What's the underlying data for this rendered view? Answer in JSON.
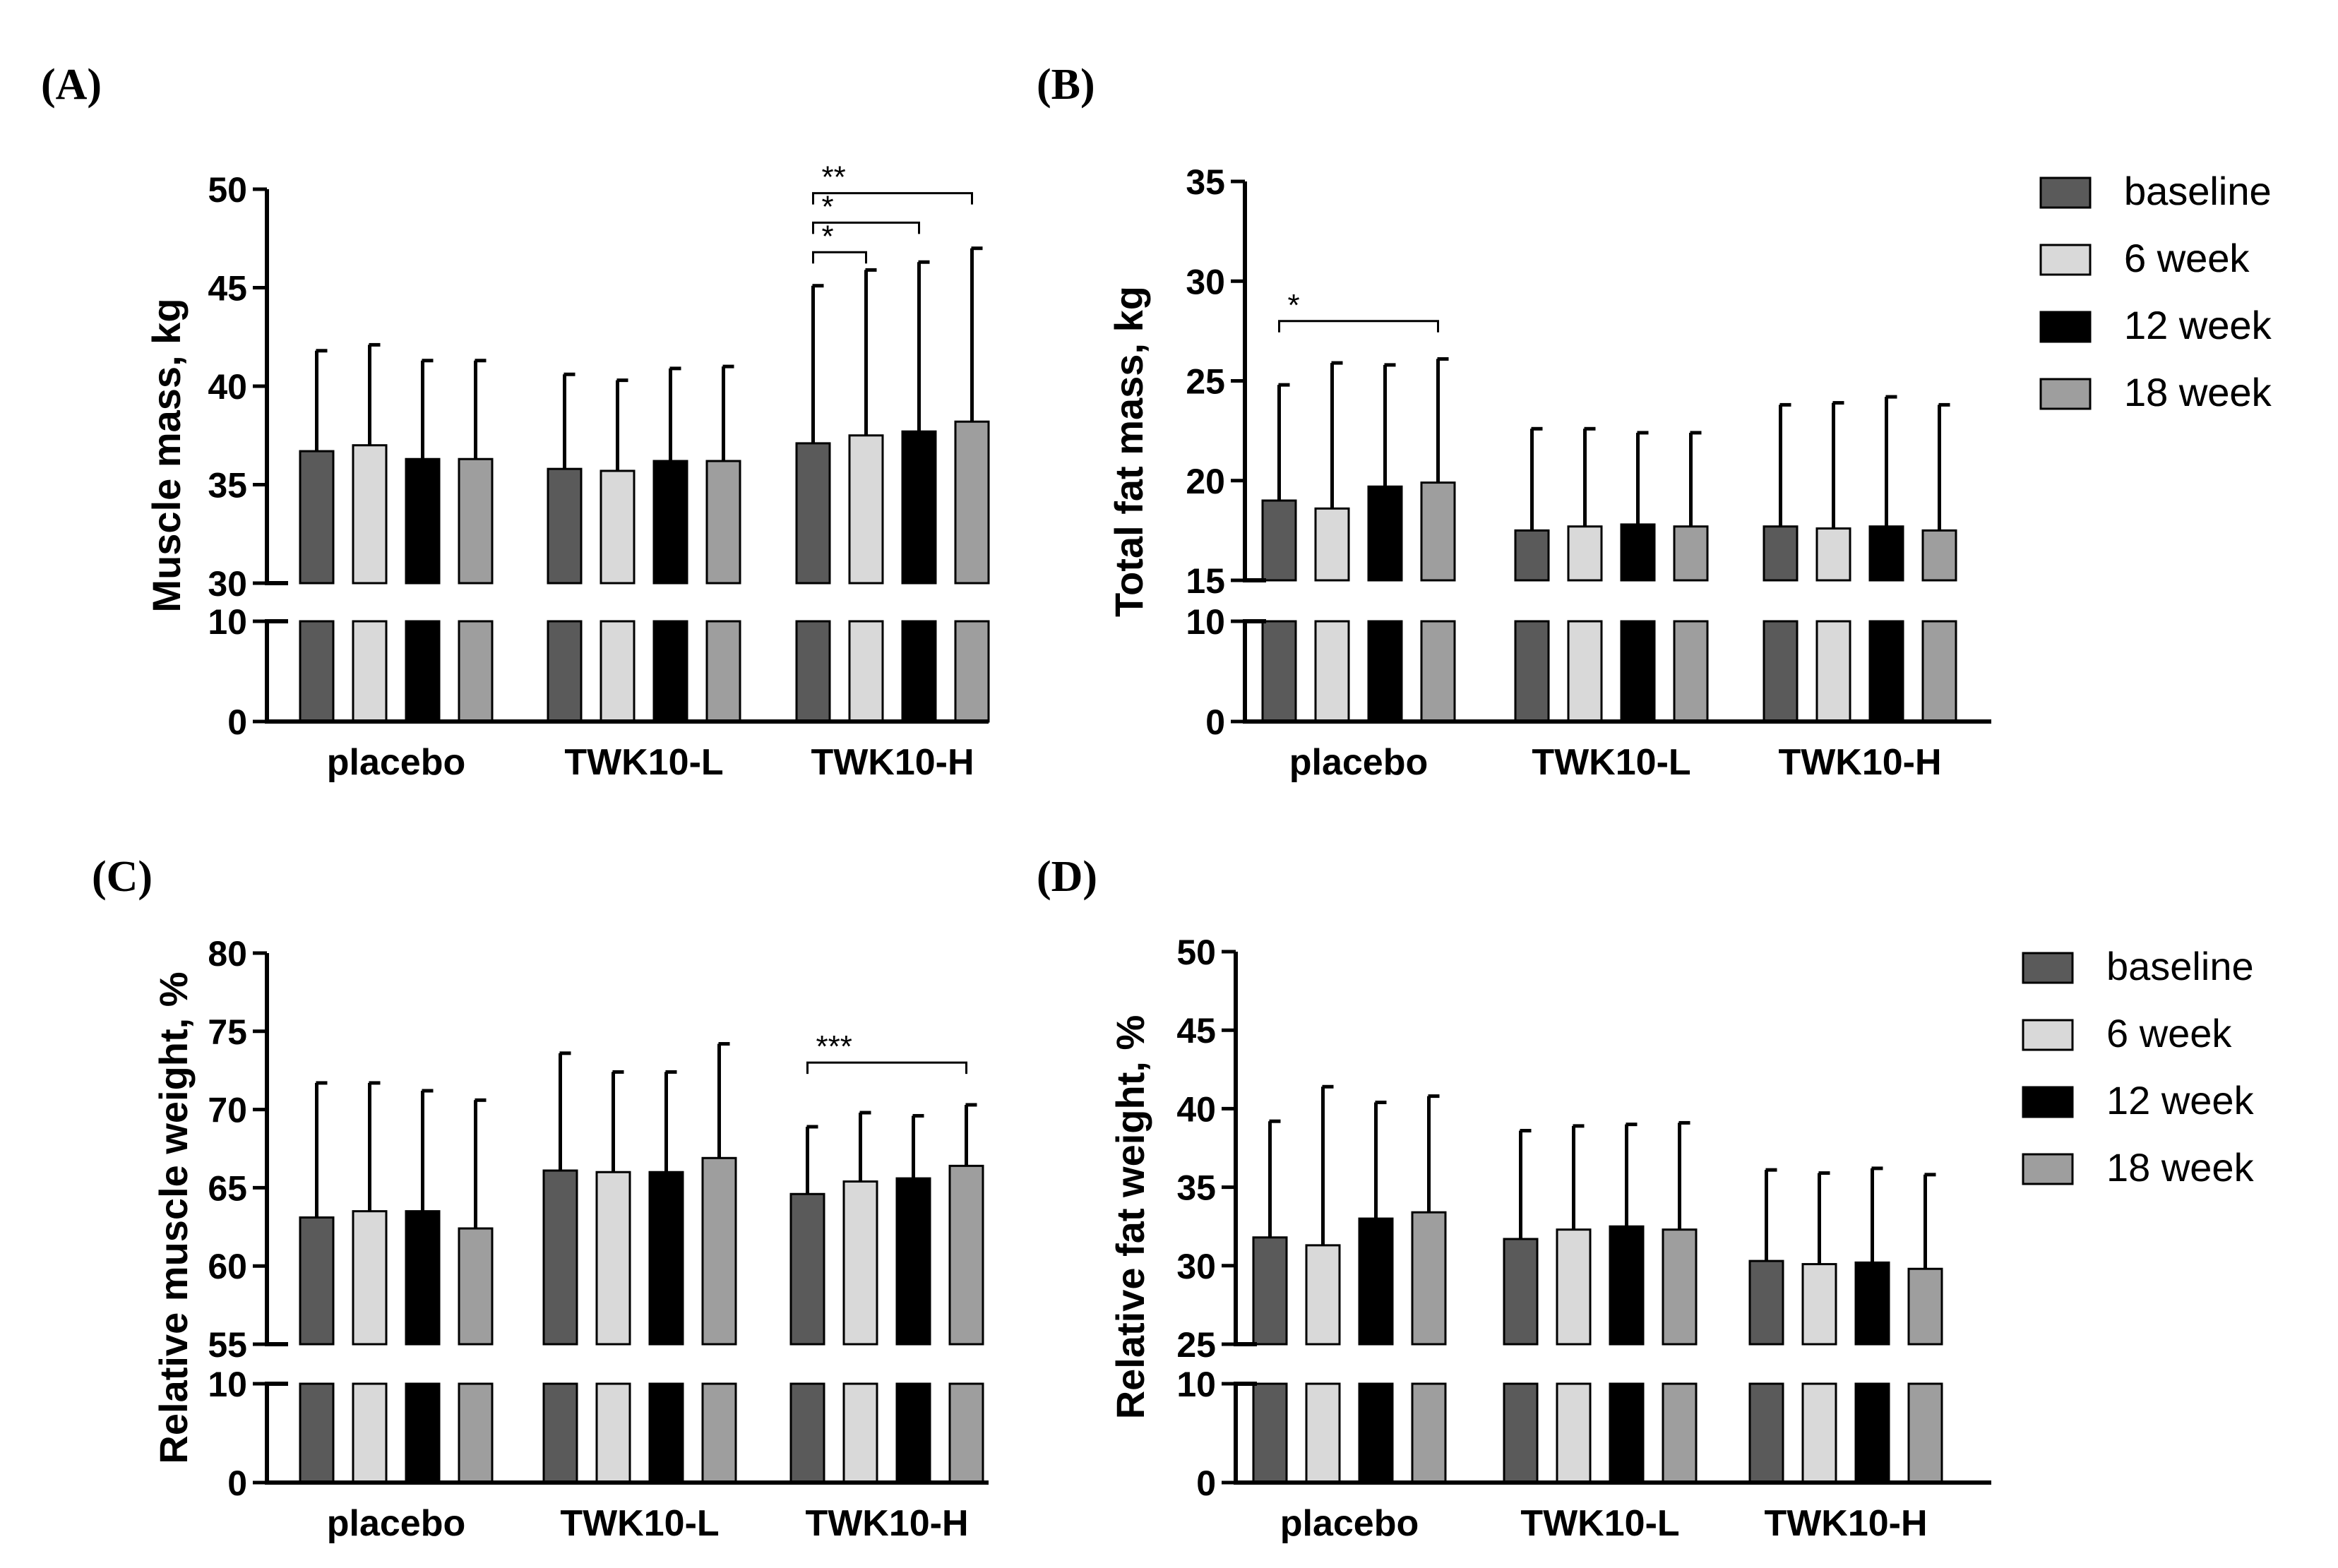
{
  "chart_data": [
    {
      "id": "A",
      "type": "bar",
      "panel_label": "(A)",
      "ylabel": "Muscle mass, kg",
      "categories": [
        "placebo",
        "TWK10-L",
        "TWK10-H"
      ],
      "axis_break": true,
      "lower_ticks": [
        0,
        10
      ],
      "upper_ylim": [
        30,
        50
      ],
      "upper_ticks": [
        30,
        35,
        40,
        45,
        50
      ],
      "legend": true,
      "series": [
        {
          "name": "baseline",
          "color": "#5a5a5a",
          "values": [
            36.7,
            35.8,
            37.1
          ],
          "errors": [
            5.1,
            4.8,
            8.0
          ]
        },
        {
          "name": "6 week",
          "color": "#d9d9d9",
          "values": [
            37.0,
            35.7,
            37.5
          ],
          "errors": [
            5.1,
            4.6,
            8.4
          ]
        },
        {
          "name": "12 week",
          "color": "#000000",
          "values": [
            36.3,
            36.2,
            37.7
          ],
          "errors": [
            5.0,
            4.7,
            8.6
          ]
        },
        {
          "name": "18 week",
          "color": "#9e9e9e",
          "values": [
            36.3,
            36.2,
            38.2
          ],
          "errors": [
            5.0,
            4.8,
            8.8
          ]
        }
      ],
      "significance": [
        {
          "group": 2,
          "from": 0,
          "to": 3,
          "label": "**",
          "level": 49.8
        },
        {
          "group": 2,
          "from": 0,
          "to": 2,
          "label": "*",
          "level": 48.3
        },
        {
          "group": 2,
          "from": 0,
          "to": 1,
          "label": "*",
          "level": 46.8
        }
      ]
    },
    {
      "id": "B",
      "type": "bar",
      "panel_label": "(B)",
      "ylabel": "Total fat mass, kg",
      "categories": [
        "placebo",
        "TWK10-L",
        "TWK10-H"
      ],
      "axis_break": true,
      "lower_ticks": [
        0,
        10
      ],
      "upper_ylim": [
        15,
        35
      ],
      "upper_ticks": [
        15,
        20,
        25,
        30,
        35
      ],
      "legend": true,
      "series": [
        {
          "name": "baseline",
          "color": "#5a5a5a",
          "values": [
            19.0,
            17.5,
            17.7
          ],
          "errors": [
            5.8,
            5.1,
            6.1
          ]
        },
        {
          "name": "6 week",
          "color": "#d9d9d9",
          "values": [
            18.6,
            17.7,
            17.6
          ],
          "errors": [
            7.3,
            4.9,
            6.3
          ]
        },
        {
          "name": "12 week",
          "color": "#000000",
          "values": [
            19.7,
            17.8,
            17.7
          ],
          "errors": [
            6.1,
            4.6,
            6.5
          ]
        },
        {
          "name": "18 week",
          "color": "#9e9e9e",
          "values": [
            19.9,
            17.7,
            17.5
          ],
          "errors": [
            6.2,
            4.7,
            6.3
          ]
        }
      ],
      "significance": [
        {
          "group": 0,
          "from": 0,
          "to": 3,
          "label": "*",
          "level": 28.0
        }
      ]
    },
    {
      "id": "C",
      "type": "bar",
      "panel_label": "(C)",
      "ylabel": "Relative muscle weight, %",
      "categories": [
        "placebo",
        "TWK10-L",
        "TWK10-H"
      ],
      "axis_break": true,
      "lower_ticks": [
        0,
        10
      ],
      "upper_ylim": [
        55,
        80
      ],
      "upper_ticks": [
        55,
        60,
        65,
        70,
        75,
        80
      ],
      "legend": false,
      "series": [
        {
          "name": "baseline",
          "color": "#5a5a5a",
          "values": [
            63.1,
            66.1,
            64.6
          ],
          "errors": [
            8.6,
            7.5,
            4.3
          ]
        },
        {
          "name": "6 week",
          "color": "#d9d9d9",
          "values": [
            63.5,
            66.0,
            65.4
          ],
          "errors": [
            8.2,
            6.4,
            4.4
          ]
        },
        {
          "name": "12 week",
          "color": "#000000",
          "values": [
            63.5,
            66.0,
            65.6
          ],
          "errors": [
            7.7,
            6.4,
            4.0
          ]
        },
        {
          "name": "18 week",
          "color": "#9e9e9e",
          "values": [
            62.4,
            66.9,
            66.4
          ],
          "errors": [
            8.2,
            7.3,
            3.9
          ]
        }
      ],
      "significance": [
        {
          "group": 2,
          "from": 0,
          "to": 3,
          "label": "***",
          "level": 73.0
        }
      ]
    },
    {
      "id": "D",
      "type": "bar",
      "panel_label": "(D)",
      "ylabel": "Relative fat weight, %",
      "categories": [
        "placebo",
        "TWK10-L",
        "TWK10-H"
      ],
      "axis_break": true,
      "lower_ticks": [
        0,
        10
      ],
      "upper_ylim": [
        25,
        50
      ],
      "upper_ticks": [
        25,
        30,
        35,
        40,
        45,
        50
      ],
      "legend": true,
      "series": [
        {
          "name": "baseline",
          "color": "#5a5a5a",
          "values": [
            31.8,
            31.7,
            30.3
          ],
          "errors": [
            7.4,
            6.9,
            5.8
          ]
        },
        {
          "name": "6 week",
          "color": "#d9d9d9",
          "values": [
            31.3,
            32.3,
            30.1
          ],
          "errors": [
            10.1,
            6.6,
            5.8
          ]
        },
        {
          "name": "12 week",
          "color": "#000000",
          "values": [
            33.0,
            32.5,
            30.2
          ],
          "errors": [
            7.4,
            6.5,
            6.0
          ]
        },
        {
          "name": "18 week",
          "color": "#9e9e9e",
          "values": [
            33.4,
            32.3,
            29.8
          ],
          "errors": [
            7.4,
            6.8,
            6.0
          ]
        }
      ],
      "significance": []
    }
  ]
}
